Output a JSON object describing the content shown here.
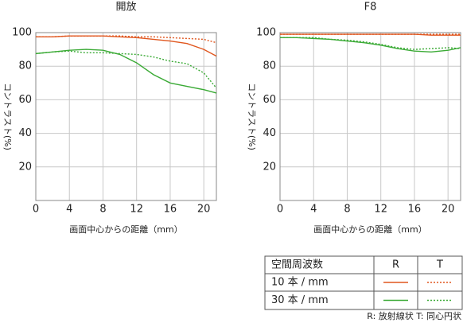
{
  "chart_data": [
    {
      "type": "line",
      "title": "開放",
      "y_label": "コントラスト(%)",
      "x_label": "画面中心からの距離（mm）",
      "x": [
        0,
        2,
        4,
        6,
        8,
        10,
        12,
        14,
        16,
        18,
        20,
        21.5
      ],
      "series": [
        {
          "color": "#e0561e",
          "style": "solid",
          "values": [
            97.5,
            97.5,
            98,
            98,
            98,
            97.5,
            97,
            96,
            95,
            93.5,
            90,
            86
          ]
        },
        {
          "color": "#e0561e",
          "style": "dotted",
          "values": [
            97.5,
            97.5,
            98,
            98,
            98,
            98,
            97.5,
            97.5,
            97,
            96.5,
            96,
            94
          ]
        },
        {
          "color": "#3aaa35",
          "style": "solid",
          "values": [
            87.5,
            88.5,
            89.5,
            90,
            89.5,
            87,
            82,
            75,
            70,
            68,
            66,
            64
          ]
        },
        {
          "color": "#3aaa35",
          "style": "dotted",
          "values": [
            87.5,
            88.5,
            89,
            88,
            88,
            87.5,
            87,
            85.5,
            83,
            81.5,
            76,
            67
          ]
        }
      ],
      "xlim": [
        0,
        21.5
      ],
      "ylim": [
        0,
        100
      ],
      "xticks": [
        0,
        4,
        8,
        12,
        16,
        20
      ],
      "yticks": [
        20,
        40,
        60,
        80,
        100
      ],
      "grid": true
    },
    {
      "type": "line",
      "title": "F8",
      "y_label": "コントラスト(%)",
      "x_label": "画面中心からの距離（mm）",
      "x": [
        0,
        2,
        4,
        6,
        8,
        10,
        12,
        14,
        16,
        18,
        20,
        21.5
      ],
      "series": [
        {
          "color": "#e0561e",
          "style": "solid",
          "values": [
            99,
            99,
            99,
            99,
            99,
            99,
            99,
            99,
            99,
            98.5,
            98.5,
            98.5
          ]
        },
        {
          "color": "#e0561e",
          "style": "dotted",
          "values": [
            99,
            99,
            99,
            99,
            99,
            99,
            99,
            99,
            99,
            99,
            99,
            99
          ]
        },
        {
          "color": "#3aaa35",
          "style": "solid",
          "values": [
            97,
            97,
            96.5,
            96,
            95,
            94,
            92.5,
            90.5,
            89,
            88.5,
            89.5,
            91
          ]
        },
        {
          "color": "#3aaa35",
          "style": "dotted",
          "values": [
            97,
            97,
            97,
            96,
            95.5,
            94.5,
            93,
            91,
            90,
            90.5,
            91,
            90.5
          ]
        }
      ],
      "xlim": [
        0,
        21.5
      ],
      "ylim": [
        0,
        100
      ],
      "xticks": [
        0,
        4,
        8,
        12,
        16,
        20
      ],
      "yticks": [
        20,
        40,
        60,
        80,
        100
      ],
      "grid": true
    }
  ],
  "legend_table": {
    "header": [
      "空間周波数",
      "R",
      "T"
    ],
    "rows": [
      {
        "label": "10 本 / mm",
        "color": "#e0561e"
      },
      {
        "label": "30 本 / mm",
        "color": "#3aaa35"
      }
    ]
  },
  "footnote": "R: 放射線状  T: 同心円状"
}
